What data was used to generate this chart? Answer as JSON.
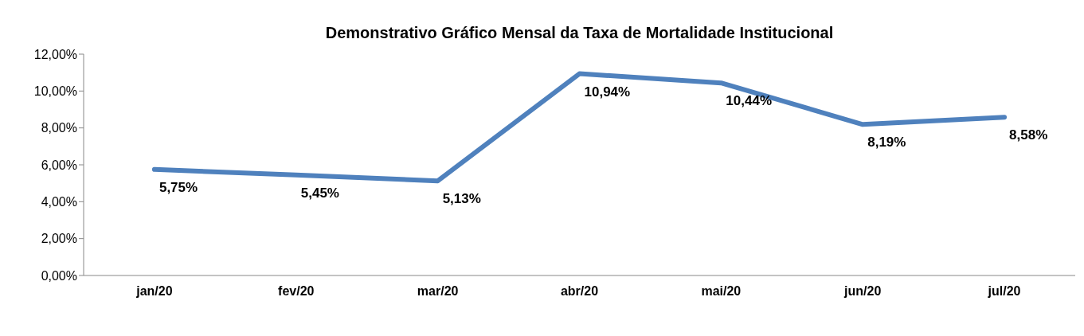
{
  "chart_data": {
    "type": "line",
    "title": "Demonstrativo Gráfico Mensal da Taxa de Mortalidade Institucional",
    "categories": [
      "jan/20",
      "fev/20",
      "mar/20",
      "abr/20",
      "mai/20",
      "jun/20",
      "jul/20"
    ],
    "series": [
      {
        "color": "#4f81bd",
        "values": [
          5.75,
          5.45,
          5.13,
          10.94,
          10.44,
          8.19,
          8.58
        ],
        "value_labels": [
          "5,75%",
          "5,45%",
          "5,13%",
          "10,94%",
          "10,44%",
          "8,19%",
          "8,58%"
        ]
      }
    ],
    "ylim": [
      0,
      12
    ],
    "yticks": [
      {
        "value": 0,
        "label": "0,00%"
      },
      {
        "value": 2,
        "label": "2,00%"
      },
      {
        "value": 4,
        "label": "4,00%"
      },
      {
        "value": 6,
        "label": "6,00%"
      },
      {
        "value": 8,
        "label": "8,00%"
      },
      {
        "value": 10,
        "label": "10,00%"
      },
      {
        "value": 12,
        "label": "12,00%"
      }
    ],
    "grid": false,
    "legend": false,
    "marker": "none",
    "line_style": "solid"
  }
}
